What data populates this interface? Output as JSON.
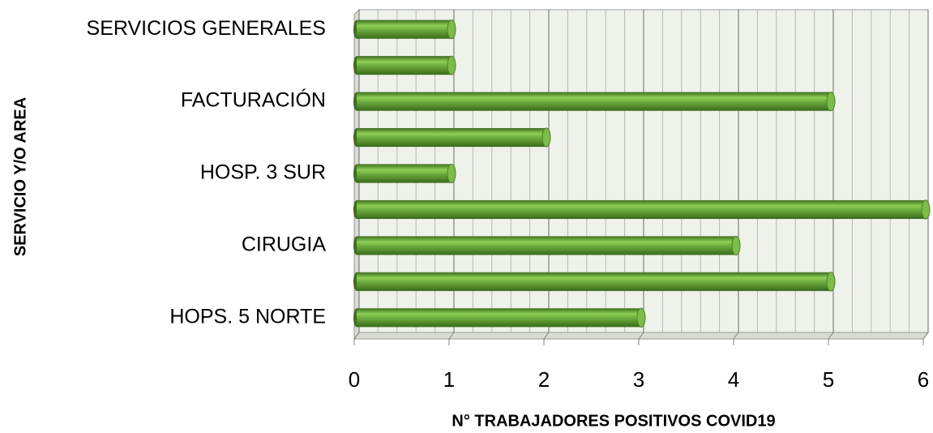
{
  "chart_data": {
    "type": "bar",
    "orientation": "horizontal",
    "xlabel": "N° TRABAJADORES POSITIVOS COVID19",
    "ylabel": "SERVICIO Y/O AREA",
    "categories": [
      "HOPS. 5 NORTE",
      null,
      "CIRUGIA",
      null,
      "HOSP. 3 SUR",
      null,
      "FACTURACIÓN",
      null,
      "SERVICIOS GENERALES"
    ],
    "values": [
      3,
      5,
      4,
      6,
      1,
      2,
      5,
      1,
      1
    ],
    "color": "#6aa83a",
    "xlim": [
      0,
      6
    ],
    "xticks": [
      0,
      1,
      2,
      3,
      4,
      5,
      6
    ],
    "grid": true
  }
}
